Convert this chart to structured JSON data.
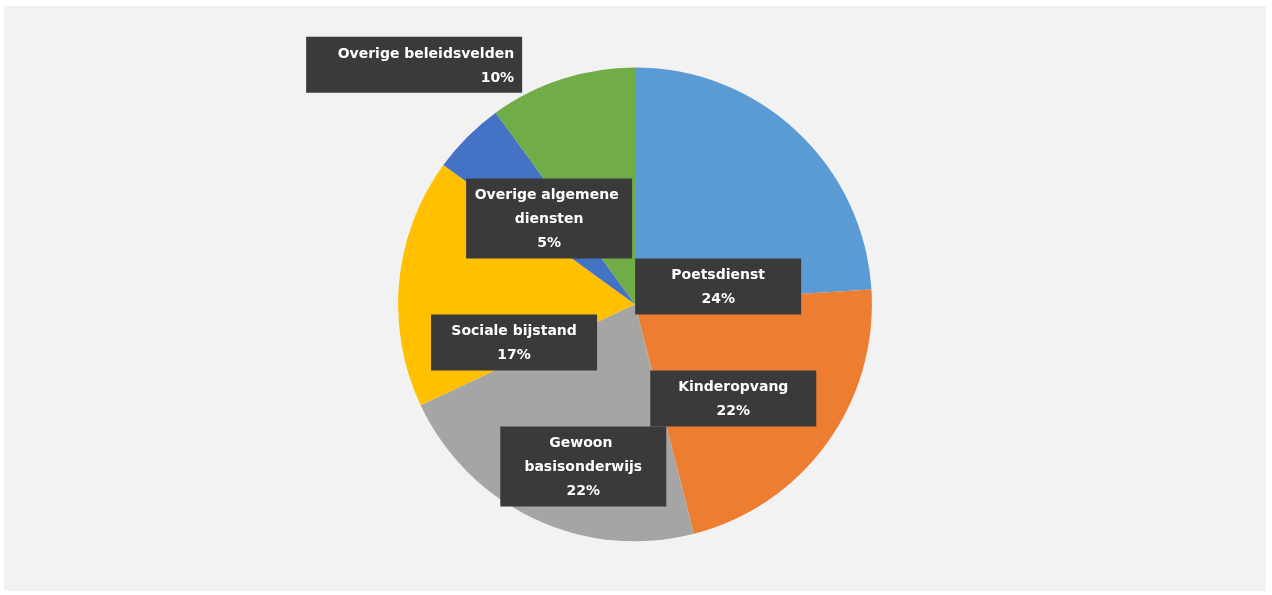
{
  "chart_data": {
    "type": "pie",
    "categories": [
      "Poetsdienst",
      "Kinderopvang",
      "Gewoon basisonderwijs",
      "Sociale bijstand",
      "Overige algemene diensten",
      "Overige beleidsvelden"
    ],
    "values": [
      24,
      22,
      22,
      17,
      5,
      10
    ],
    "colors": [
      "#5b9bd5",
      "#ed7d31",
      "#a5a5a5",
      "#ffc000",
      "#4472c4",
      "#70ad47"
    ],
    "value_labels": [
      "24%",
      "22%",
      "22%",
      "17%",
      "5%",
      "10%"
    ],
    "legend": false
  }
}
